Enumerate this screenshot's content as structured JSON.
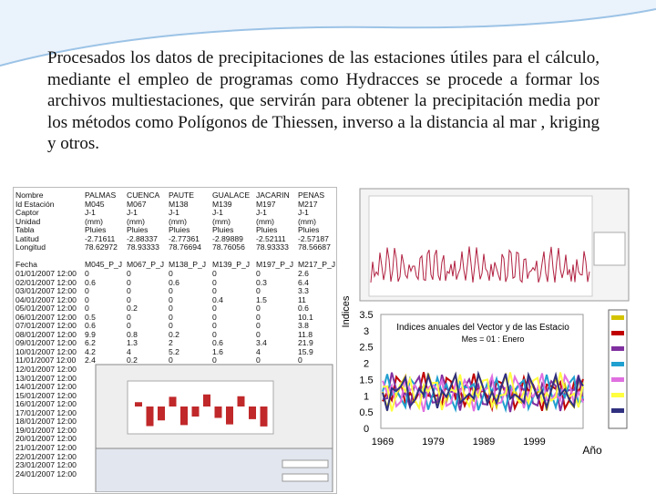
{
  "slide": {
    "paragraph": "Procesados los datos de precipitaciones de las estaciones útiles para el cálculo, mediante el empleo de programas como Hydracces se procede a formar los archivos multiestaciones, que servirán para obtener la precipitación media por los métodos como Polígonos de Thiessen, inverso a la distancia al mar , kriging y otros."
  },
  "spreadsheet": {
    "header_rows": [
      [
        "Nombre",
        "PALMAS",
        "CUENCA",
        "PAUTE",
        "GUALACE",
        "JACARIN",
        "PENAS"
      ],
      [
        "Id Estación",
        "M045",
        "M067",
        "M138",
        "M139",
        "M197",
        "M217"
      ],
      [
        "Captor",
        "J-1",
        "J-1",
        "J-1",
        "J-1",
        "J-1",
        "J-1"
      ],
      [
        "Unidad",
        "(mm)",
        "(mm)",
        "(mm)",
        "(mm)",
        "(mm)",
        "(mm)"
      ],
      [
        "Tabla",
        "Pluies",
        "Pluies",
        "Pluies",
        "Pluies",
        "Pluies",
        "Pluies"
      ],
      [
        "Latitud",
        "-2.71611",
        "-2.88337",
        "-2.77361",
        "-2.89889",
        "-2.52111",
        "-2.57187"
      ],
      [
        "Longitud",
        "78.62972",
        "78.93333",
        "78.76694",
        "78.76056",
        "78.93333",
        "78.56687"
      ],
      [
        "Fecha",
        "M045_P_J",
        "M067_P_J",
        "M138_P_J",
        "M139_P_J",
        "M197_P_J",
        "M217_P_J"
      ]
    ],
    "date_rows": [
      [
        "01/01/2007 12:00",
        "0",
        "0",
        "0",
        "0",
        "0",
        "2.6"
      ],
      [
        "02/01/2007 12:00",
        "0.6",
        "0",
        "0.6",
        "0",
        "0.3",
        "6.4"
      ],
      [
        "03/01/2007 12:00",
        "0",
        "0",
        "0",
        "0",
        "0",
        "3.3"
      ],
      [
        "04/01/2007 12:00",
        "0",
        "0",
        "0",
        "0.4",
        "1.5",
        "11"
      ],
      [
        "05/01/2007 12:00",
        "0",
        "0.2",
        "0",
        "0",
        "0",
        "0.6"
      ],
      [
        "06/01/2007 12:00",
        "0.5",
        "0",
        "0",
        "0",
        "0",
        "10.1"
      ],
      [
        "07/01/2007 12:00",
        "0.6",
        "0",
        "0",
        "0",
        "0",
        "3.8"
      ],
      [
        "08/01/2007 12:00",
        "9.9",
        "0.8",
        "0.2",
        "0",
        "0",
        "11.8"
      ],
      [
        "09/01/2007 12:00",
        "6.2",
        "1.3",
        "2",
        "0.6",
        "3.4",
        "21.9"
      ],
      [
        "10/01/2007 12:00",
        "4.2",
        "4",
        "5.2",
        "1.6",
        "4",
        "15.9"
      ],
      [
        "11/01/2007 12:00",
        "2.4",
        "0.2",
        "0",
        "0",
        "0",
        "0"
      ],
      [
        "12/01/2007 12:00"
      ],
      [
        "13/01/2007 12:00"
      ],
      [
        "14/01/2007 12:00"
      ],
      [
        "15/01/2007 12:00"
      ],
      [
        "16/01/2007 12:00"
      ],
      [
        "17/01/2007 12:00"
      ],
      [
        "18/01/2007 12:00"
      ],
      [
        "19/01/2007 12:00"
      ],
      [
        "20/01/2007 12:00"
      ],
      [
        "21/01/2007 12:00"
      ],
      [
        "22/01/2007 12:00"
      ],
      [
        "23/01/2007 12:00"
      ],
      [
        "24/01/2007 12:00"
      ]
    ]
  },
  "indices_chart": {
    "title": "Indices anuales del Vector y de las Estacio",
    "subtitle": "Mes = 01 : Enero",
    "y_label": "Indices",
    "x_label": "Año",
    "yticks": [
      "3.5",
      "3",
      "2.5",
      "2",
      "1.5",
      "1",
      "0.5",
      "0"
    ],
    "xticks": [
      "1969",
      "1979",
      "1989",
      "1999"
    ]
  }
}
